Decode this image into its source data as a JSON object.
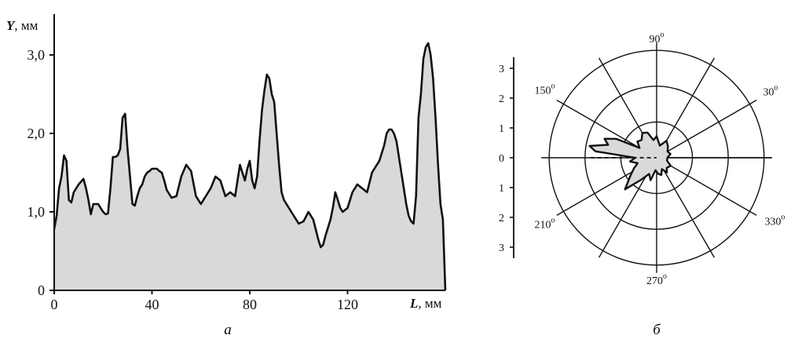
{
  "chart_data": [
    {
      "type": "area",
      "caption": "а",
      "ylabel_var": "Y",
      "ylabel_unit": ", мм",
      "xlabel_var": "L",
      "xlabel_unit": ", мм",
      "xlim": [
        0,
        160
      ],
      "ylim": [
        0,
        3.5
      ],
      "x_ticks": [
        "0",
        "40",
        "80",
        "120"
      ],
      "x_tick_values": [
        0,
        40,
        80,
        120
      ],
      "y_ticks": [
        "0",
        "1,0",
        "2,0",
        "3,0"
      ],
      "y_tick_values": [
        0,
        1,
        2,
        3
      ],
      "fill": "#d9d9d9",
      "line_color": "#111111",
      "x": [
        0,
        1,
        2,
        3,
        4,
        5,
        6,
        7,
        8,
        10,
        12,
        13,
        14,
        15,
        16,
        17,
        18,
        19,
        20,
        21,
        22,
        23,
        24,
        25,
        26,
        27,
        28,
        29,
        30,
        31,
        32,
        33,
        34,
        35,
        36,
        37,
        38,
        39,
        40,
        41,
        42,
        43,
        44,
        45,
        46,
        48,
        50,
        52,
        54,
        56,
        58,
        60,
        62,
        64,
        66,
        68,
        70,
        72,
        74,
        76,
        78,
        79,
        80,
        81,
        82,
        83,
        84,
        85,
        86,
        87,
        88,
        89,
        90,
        91,
        92,
        93,
        94,
        95,
        96,
        98,
        100,
        102,
        104,
        106,
        108,
        109,
        110,
        111,
        112,
        113,
        114,
        115,
        116,
        117,
        118,
        120,
        121,
        122,
        124,
        126,
        128,
        130,
        131,
        132,
        133,
        134,
        135,
        136,
        137,
        138,
        139,
        140,
        141,
        142,
        143,
        144,
        145,
        146,
        147,
        148,
        149,
        150,
        151,
        152,
        153,
        154,
        155,
        156,
        157,
        158,
        159,
        160
      ],
      "y": [
        0.78,
        0.95,
        1.3,
        1.45,
        1.72,
        1.65,
        1.15,
        1.12,
        1.25,
        1.35,
        1.42,
        1.3,
        1.15,
        0.97,
        1.1,
        1.1,
        1.1,
        1.05,
        1.0,
        0.97,
        0.98,
        1.3,
        1.7,
        1.7,
        1.72,
        1.8,
        2.2,
        2.25,
        1.8,
        1.45,
        1.1,
        1.08,
        1.2,
        1.3,
        1.35,
        1.45,
        1.5,
        1.52,
        1.55,
        1.55,
        1.55,
        1.52,
        1.5,
        1.4,
        1.28,
        1.18,
        1.2,
        1.45,
        1.6,
        1.52,
        1.2,
        1.1,
        1.2,
        1.3,
        1.45,
        1.4,
        1.2,
        1.25,
        1.2,
        1.6,
        1.4,
        1.55,
        1.65,
        1.4,
        1.3,
        1.45,
        1.9,
        2.3,
        2.55,
        2.75,
        2.7,
        2.5,
        2.4,
        2.0,
        1.6,
        1.25,
        1.15,
        1.1,
        1.05,
        0.95,
        0.85,
        0.88,
        1.0,
        0.9,
        0.65,
        0.55,
        0.58,
        0.7,
        0.8,
        0.9,
        1.05,
        1.25,
        1.15,
        1.05,
        1.0,
        1.05,
        1.15,
        1.25,
        1.35,
        1.3,
        1.25,
        1.5,
        1.55,
        1.6,
        1.65,
        1.75,
        1.85,
        2.0,
        2.05,
        2.05,
        2.0,
        1.9,
        1.7,
        1.5,
        1.3,
        1.1,
        0.95,
        0.88,
        0.85,
        1.2,
        2.2,
        2.5,
        2.95,
        3.1,
        3.15,
        3.0,
        2.7,
        2.2,
        1.6,
        1.1,
        0.9,
        0
      ]
    },
    {
      "type": "polar",
      "caption": "б",
      "radial_ticks_upper": [
        "3",
        "2",
        "1",
        "0"
      ],
      "radial_ticks_lower": [
        "1",
        "2",
        "3"
      ],
      "radial_tick_values_upper": [
        3,
        2,
        1,
        0
      ],
      "radial_tick_values_lower": [
        1,
        2,
        3
      ],
      "rings": [
        1,
        2,
        3
      ],
      "spokes_deg": [
        0,
        30,
        60,
        90,
        120,
        150,
        180,
        210,
        240,
        270,
        300,
        330
      ],
      "angle_labels": [
        {
          "deg": 90,
          "text": "90",
          "sup": "o"
        },
        {
          "deg": 30,
          "text": "30",
          "sup": "o"
        },
        {
          "deg": 150,
          "text": "150",
          "sup": "o"
        },
        {
          "deg": 210,
          "text": "210",
          "sup": "o"
        },
        {
          "deg": 270,
          "text": "270",
          "sup": "o"
        },
        {
          "deg": 330,
          "text": "330",
          "sup": "o"
        }
      ],
      "fill": "#d9d9d9",
      "line_color": "#111111",
      "polygon": [
        {
          "theta": 0,
          "r": 0.3
        },
        {
          "theta": 15,
          "r": 0.4
        },
        {
          "theta": 30,
          "r": 0.35
        },
        {
          "theta": 45,
          "r": 0.45
        },
        {
          "theta": 60,
          "r": 0.55
        },
        {
          "theta": 75,
          "r": 0.35
        },
        {
          "theta": 90,
          "r": 0.6
        },
        {
          "theta": 100,
          "r": 0.5
        },
        {
          "theta": 110,
          "r": 0.75
        },
        {
          "theta": 120,
          "r": 0.8
        },
        {
          "theta": 130,
          "r": 0.65
        },
        {
          "theta": 140,
          "r": 0.7
        },
        {
          "theta": 150,
          "r": 0.55
        },
        {
          "theta": 155,
          "r": 1.25
        },
        {
          "theta": 160,
          "r": 1.55
        },
        {
          "theta": 165,
          "r": 1.4
        },
        {
          "theta": 170,
          "r": 1.9
        },
        {
          "theta": 174,
          "r": 1.72
        },
        {
          "theta": 180,
          "r": 0.6
        },
        {
          "theta": 188,
          "r": 0.75
        },
        {
          "theta": 196,
          "r": 0.55
        },
        {
          "theta": 205,
          "r": 0.7
        },
        {
          "theta": 215,
          "r": 0.9
        },
        {
          "theta": 225,
          "r": 1.25
        },
        {
          "theta": 235,
          "r": 0.75
        },
        {
          "theta": 245,
          "r": 0.5
        },
        {
          "theta": 255,
          "r": 0.65
        },
        {
          "theta": 265,
          "r": 0.35
        },
        {
          "theta": 275,
          "r": 0.45
        },
        {
          "theta": 285,
          "r": 0.5
        },
        {
          "theta": 295,
          "r": 0.35
        },
        {
          "theta": 305,
          "r": 0.5
        },
        {
          "theta": 315,
          "r": 0.4
        },
        {
          "theta": 330,
          "r": 0.45
        },
        {
          "theta": 345,
          "r": 0.3
        }
      ],
      "dashed_axis_deg": 180
    }
  ]
}
